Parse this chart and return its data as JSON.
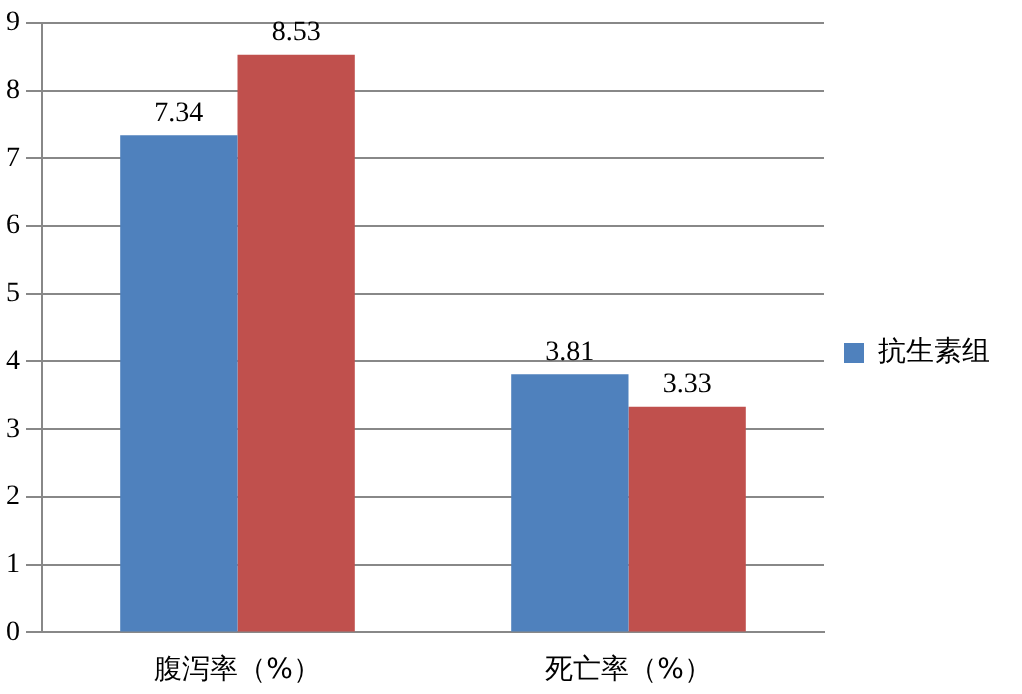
{
  "chart_data": {
    "type": "bar",
    "categories": [
      "腹泻率（%）",
      "死亡率（%）"
    ],
    "series": [
      {
        "name": "抗生素组",
        "color": "#4f81bd",
        "values": [
          7.34,
          3.81
        ]
      },
      {
        "color": "#c0504d",
        "values": [
          8.53,
          3.33
        ]
      }
    ],
    "ylim": [
      0,
      9
    ],
    "yticks": [
      0,
      1,
      2,
      3,
      4,
      5,
      6,
      7,
      8,
      9
    ],
    "grid": "y",
    "legend": "right",
    "data_labels": true
  }
}
